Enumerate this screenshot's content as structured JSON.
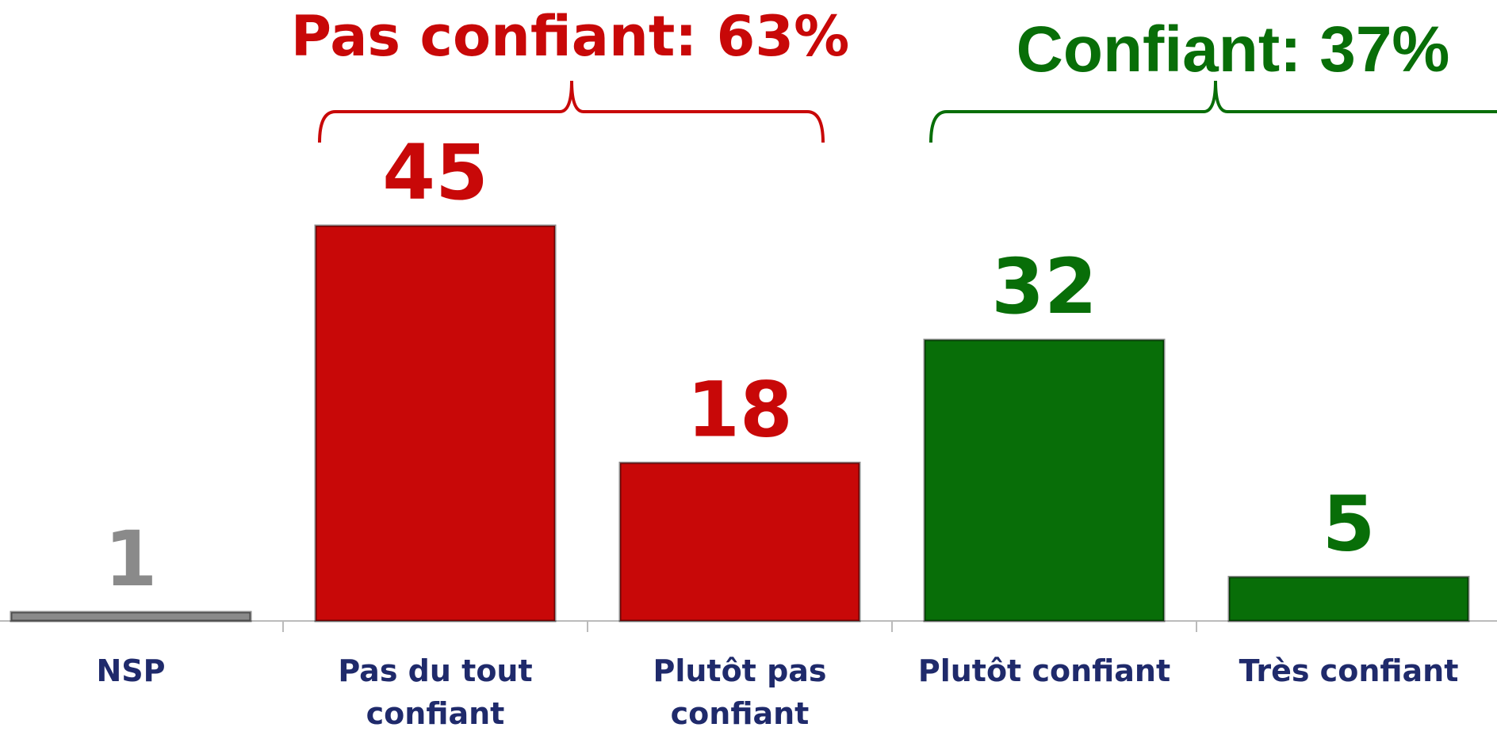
{
  "chart_data": {
    "type": "bar",
    "categories": [
      "NSP",
      "Pas du tout confiant",
      "Plutôt pas confiant",
      "Plutôt confiant",
      "Très confiant"
    ],
    "values": [
      1,
      45,
      18,
      32,
      5
    ],
    "colors": [
      "#8a8a8a",
      "#c80808",
      "#c80808",
      "#086e08",
      "#086e08"
    ],
    "annotations": [
      {
        "text": "Pas confiant: 63%",
        "color": "#c80808"
      },
      {
        "text": "Confiant: 37%",
        "color": "#086e08"
      }
    ]
  }
}
